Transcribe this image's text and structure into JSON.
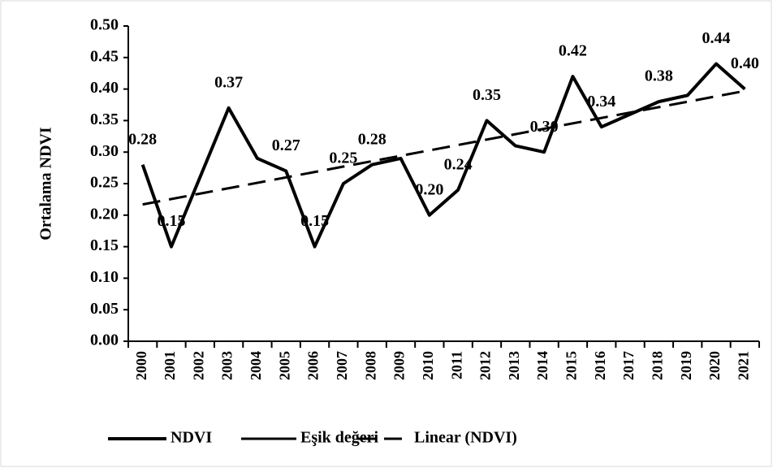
{
  "chart_data": {
    "type": "line",
    "ylabel": "Ortalama NDVI",
    "categories": [
      "2000",
      "2001",
      "2002",
      "2003",
      "2004",
      "2005",
      "2006",
      "2007",
      "2008",
      "2009",
      "2010",
      "2011",
      "2012",
      "2013",
      "2014",
      "2015",
      "2016",
      "2017",
      "2018",
      "2019",
      "2020",
      "2021"
    ],
    "series": [
      {
        "name": "NDVI",
        "color": "#000000",
        "values": [
          0.28,
          0.15,
          0.26,
          0.37,
          0.29,
          0.27,
          0.15,
          0.25,
          0.28,
          0.29,
          0.2,
          0.24,
          0.35,
          0.31,
          0.3,
          0.42,
          0.34,
          0.36,
          0.38,
          0.39,
          0.44,
          0.4
        ],
        "value_labels": [
          "0.28",
          "0.15",
          null,
          "0.37",
          null,
          "0.27",
          "0.15",
          "0.25",
          "0.28",
          null,
          "0.20",
          "0.24",
          "0.35",
          null,
          "0.30",
          "0.42",
          "0.34",
          null,
          "0.38",
          null,
          "0.44",
          "0.40"
        ]
      },
      {
        "name": "Eşik değeri",
        "color": "#000000",
        "values": [
          null,
          null,
          null,
          null,
          null,
          null,
          null,
          null,
          null,
          null,
          null,
          null,
          null,
          null,
          null,
          null,
          null,
          null,
          null,
          null,
          null,
          null
        ]
      }
    ],
    "trendline": {
      "name": "Linear (NDVI)",
      "color": "#000000",
      "values": [
        0.217,
        0.397
      ]
    },
    "ylim": [
      0,
      0.5
    ],
    "yticks": [
      {
        "value": 0,
        "label": "0.00"
      },
      {
        "value": 0.05,
        "label": "0.05"
      },
      {
        "value": 0.1,
        "label": "0.10"
      },
      {
        "value": 0.15,
        "label": "0.15"
      },
      {
        "value": 0.2,
        "label": "0.20"
      },
      {
        "value": 0.25,
        "label": "0.25"
      },
      {
        "value": 0.3,
        "label": "0.30"
      },
      {
        "value": 0.35,
        "label": "0.35"
      },
      {
        "value": 0.4,
        "label": "0.40"
      },
      {
        "value": 0.45,
        "label": "0.45"
      },
      {
        "value": 0.5,
        "label": "0.50"
      }
    ],
    "grid": false,
    "legend": "bottom"
  }
}
